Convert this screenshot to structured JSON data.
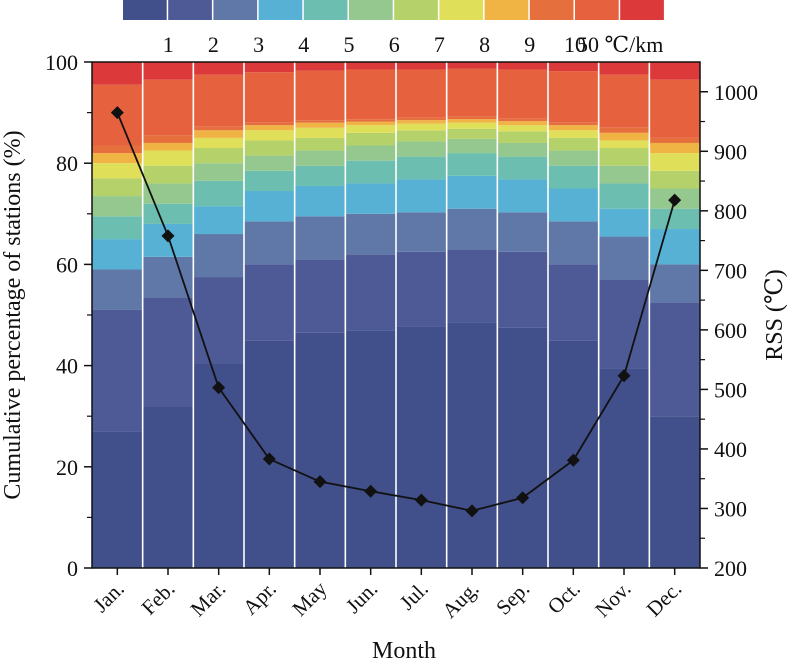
{
  "chart_data": {
    "type": "bar",
    "stacked": true,
    "categories": [
      "Jan.",
      "Feb.",
      "Mar.",
      "Apr.",
      "May",
      "Jun.",
      "Jul.",
      "Aug.",
      "Sep.",
      "Oct.",
      "Nov.",
      "Dec."
    ],
    "xlabel": "Month",
    "ylabel": "Cumulative percentage of stations (%)",
    "ylim": [
      0,
      100
    ],
    "yticks": [
      0,
      20,
      40,
      60,
      80,
      100
    ],
    "y2label": "RSS (℃)",
    "y2lim": [
      200,
      1050
    ],
    "y2ticks": [
      200,
      300,
      400,
      500,
      600,
      700,
      800,
      900,
      1000
    ],
    "legend_labels": [
      "1",
      "2",
      "3",
      "4",
      "5",
      "6",
      "7",
      "8",
      "9",
      "10",
      "50 ℃/km"
    ],
    "legend_position": "top",
    "colors": [
      "#414f8a",
      "#4e5a96",
      "#5f78a8",
      "#56b1d4",
      "#6cbfb0",
      "#95c88e",
      "#b5d26a",
      "#e0df5a",
      "#f0b445",
      "#e6703d",
      "#e6623e",
      "#dc3a3a"
    ],
    "cumulative_series": [
      {
        "name": "1",
        "values": [
          27,
          32,
          40.5,
          45,
          46.5,
          47,
          47.8,
          48.5,
          47.5,
          45,
          39.5,
          30
        ]
      },
      {
        "name": "2",
        "values": [
          51,
          53.5,
          57.5,
          60,
          61,
          62,
          62.5,
          63,
          62.5,
          60,
          57,
          52.5
        ]
      },
      {
        "name": "3",
        "values": [
          59,
          61.5,
          66,
          68.5,
          69.5,
          70,
          70.3,
          71,
          70.3,
          68.5,
          65.5,
          60
        ]
      },
      {
        "name": "4",
        "values": [
          65,
          68,
          71.5,
          74.5,
          75.5,
          76,
          76.8,
          77.5,
          76.8,
          75,
          71,
          67
        ]
      },
      {
        "name": "5",
        "values": [
          69.5,
          72,
          76.5,
          78.5,
          79.5,
          80.5,
          81.3,
          82,
          81.3,
          79.5,
          76,
          71
        ]
      },
      {
        "name": "6",
        "values": [
          73.5,
          76,
          80,
          81.5,
          82.5,
          83.5,
          84.3,
          84.8,
          84,
          82.5,
          79.5,
          75
        ]
      },
      {
        "name": "7",
        "values": [
          77,
          79.5,
          83,
          84.5,
          85,
          86,
          86.5,
          86.8,
          86.3,
          85,
          83,
          78.5
        ]
      },
      {
        "name": "8",
        "values": [
          80,
          82.5,
          85,
          86.5,
          87,
          87.5,
          87.8,
          88,
          87.5,
          86.5,
          84.5,
          82
        ]
      },
      {
        "name": "9",
        "values": [
          82,
          84,
          86.5,
          87.5,
          88,
          88.2,
          88.5,
          88.7,
          88.3,
          87.5,
          86,
          84
        ]
      },
      {
        "name": "10",
        "values": [
          83.5,
          85.5,
          87.2,
          88,
          88.5,
          88.7,
          89,
          89.2,
          88.8,
          88,
          87,
          85
        ]
      },
      {
        "name": "50 ℃/km",
        "values": [
          95.5,
          96.5,
          97.5,
          98,
          98.3,
          98.5,
          98.5,
          98.7,
          98.5,
          98.2,
          97.5,
          96.5
        ]
      },
      {
        "name": "",
        "values": [
          100,
          100,
          100,
          100,
          100,
          100,
          100,
          100,
          100,
          100,
          100,
          100
        ]
      }
    ],
    "line_series": {
      "axis": "right",
      "values": [
        965,
        758,
        503,
        383,
        345,
        329,
        314,
        296,
        318,
        381,
        523,
        818
      ]
    }
  }
}
